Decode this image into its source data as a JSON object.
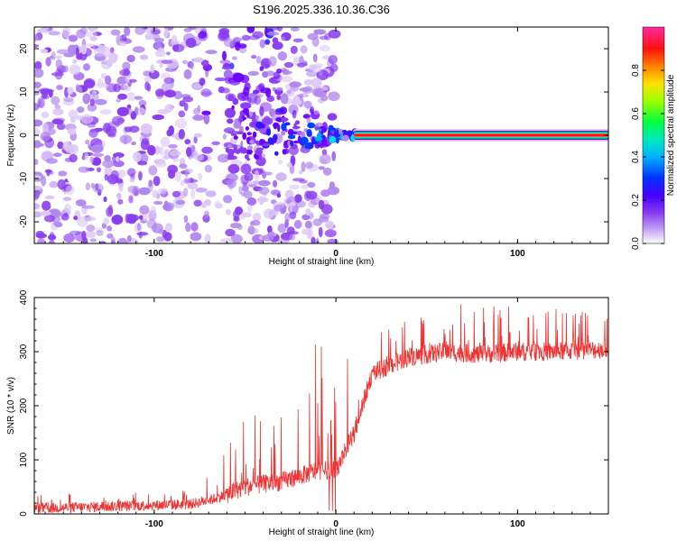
{
  "title": "S196.2025.336.10.36.C36",
  "colors": {
    "snr_line": "#ee3333",
    "frame": "#000000",
    "colormap": [
      "#ffffff",
      "#dcc8f5",
      "#b088ee",
      "#8a3cf0",
      "#6a00ff",
      "#2a1aff",
      "#0040ff",
      "#00a8ff",
      "#00e0e0",
      "#00ff40",
      "#c0ff00",
      "#ffe000",
      "#ff8000",
      "#ff0000",
      "#ff0060",
      "#ff2aa0"
    ]
  },
  "chart_data": [
    {
      "type": "heatmap",
      "xlabel": "Height of straight line (km)",
      "ylabel": "Frequency (Hz)",
      "xlim": [
        -166,
        150
      ],
      "ylim": [
        -25,
        25
      ],
      "xticks": [
        -100,
        0,
        100
      ],
      "yticks": [
        -20,
        -10,
        0,
        10,
        20
      ],
      "colorbar": {
        "label": "Normalized spectral amplitude",
        "range": [
          0,
          1
        ],
        "ticks": [
          0.0,
          0.2,
          0.4,
          0.6,
          0.8
        ]
      },
      "description_values": {
        "noise_region_x": [
          -166,
          -20
        ],
        "transition_x": [
          -60,
          15
        ],
        "stable_line_x": [
          10,
          150
        ],
        "stable_line_freq_hz": 0,
        "stable_line_amplitude": 0.95
      }
    },
    {
      "type": "line",
      "xlabel": "Height of straight line (km)",
      "ylabel": "SNR (10 * v/v)",
      "xlim": [
        -166,
        150
      ],
      "ylim": [
        0,
        400
      ],
      "xticks": [
        -100,
        0,
        100
      ],
      "yticks": [
        0,
        100,
        200,
        300,
        400
      ],
      "series": [
        {
          "name": "SNR",
          "x_breakpoints": [
            -166,
            -80,
            -65,
            -50,
            -30,
            -20,
            -10,
            0,
            10,
            20,
            40,
            60,
            80,
            100,
            120,
            150
          ],
          "baseline": [
            10,
            18,
            30,
            50,
            60,
            70,
            80,
            80,
            150,
            260,
            290,
            300,
            295,
            300,
            300,
            305
          ],
          "peak": [
            35,
            50,
            110,
            180,
            220,
            260,
            320,
            330,
            310,
            330,
            360,
            390,
            400,
            390,
            380,
            370
          ]
        }
      ]
    }
  ]
}
